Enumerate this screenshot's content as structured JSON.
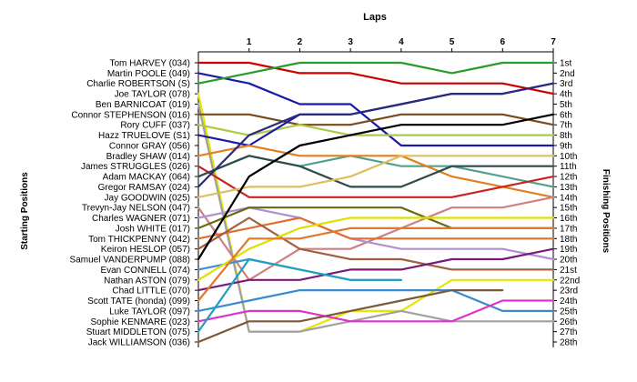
{
  "chart_data": {
    "type": "line",
    "title": "Laps",
    "y_left_label": "Starting Positions",
    "y_right_label": "Finishing Positions",
    "x": [
      0,
      1,
      2,
      3,
      4,
      5,
      6,
      7
    ],
    "x_tick_labels": [
      "1",
      "2",
      "3",
      "4",
      "5",
      "6",
      "7"
    ],
    "rows": 28,
    "starting_positions": [
      "Tom HARVEY (034)",
      "Martin POOLE (049)",
      "Charlie ROBERTSON (S)",
      "Joe TAYLOR (078)",
      "Ben BARNICOAT (019)",
      "Connor STEPHENSON (016)",
      "Rory CUFF (037)",
      "Hazz TRUELOVE (S1)",
      "Connor GRAY (056)",
      "Bradley SHAW (014)",
      "James STRUGGLES (026)",
      "Adam MACKAY (064)",
      "Gregor RAMSAY (024)",
      "Jay GOODWIN (025)",
      "Trevyn-Jay NELSON (047)",
      "Charles WAGNER (071)",
      "Josh WHITE (017)",
      "Tom THICKPENNY (042)",
      "Keiron HESLOP (057)",
      "Samuel VANDERPUMP (088)",
      "Evan CONNELL (074)",
      "Nathan ASTON (079)",
      "Chad LITTLE (070)",
      "Scott TATE (honda) (099)",
      "Luke TAYLOR (097)",
      "Sophie KENMARE (023)",
      "Stuart MIDDLETON (075)",
      "Jack WILLIAMSON (036)"
    ],
    "finishing_positions": [
      "1st",
      "2nd",
      "3rd",
      "4th",
      "5th",
      "6th",
      "7th",
      "8th",
      "9th",
      "10th",
      "11th",
      "12th",
      "13th",
      "14th",
      "15th",
      "16th",
      "17th",
      "18th",
      "19th",
      "20th",
      "21st",
      "22nd",
      "23rd",
      "24th",
      "25th",
      "26th",
      "27th",
      "28th"
    ],
    "series": [
      {
        "color": "#cc0000",
        "positions": [
          1,
          1,
          2,
          2,
          3,
          3,
          3,
          4
        ]
      },
      {
        "color": "#1a1aaa",
        "positions": [
          2,
          3,
          5,
          5,
          9,
          9,
          9,
          9
        ]
      },
      {
        "color": "#2a9a2a",
        "positions": [
          3,
          2,
          1,
          1,
          1,
          2,
          1,
          1
        ]
      },
      {
        "color": "#e6e600",
        "positions": [
          4,
          27,
          27,
          25,
          25,
          22,
          22,
          22
        ]
      },
      {
        "color": "#a0a0a0",
        "positions": [
          5,
          27,
          27,
          26,
          25,
          26,
          26,
          26
        ]
      },
      {
        "color": "#7a4a1a",
        "positions": [
          6,
          6,
          7,
          7,
          6,
          6,
          6,
          7
        ]
      },
      {
        "color": "#aacc44",
        "positions": [
          7,
          8,
          7,
          8,
          8,
          8,
          8,
          8
        ]
      },
      {
        "color": "#50a090",
        "positions": [
          12,
          10,
          11,
          10,
          11,
          11,
          12,
          13
        ]
      },
      {
        "color": "#1a1aaa",
        "positions": [
          8,
          9,
          6,
          6,
          5,
          4,
          4,
          3
        ]
      },
      {
        "color": "#e08020",
        "positions": [
          10,
          9,
          10,
          10,
          10,
          12,
          13,
          14
        ]
      },
      {
        "color": "#cc2222",
        "positions": [
          11,
          14,
          14,
          14,
          14,
          14,
          13,
          12
        ]
      },
      {
        "color": "#2e4a4a",
        "positions": [
          12,
          10,
          11,
          13,
          13,
          11,
          11,
          11
        ]
      },
      {
        "color": "#2a2a7a",
        "positions": [
          13,
          8,
          6,
          6,
          5,
          4,
          4,
          3
        ]
      },
      {
        "color": "#d9c060",
        "positions": [
          14,
          13,
          13,
          12,
          10,
          10,
          10,
          10
        ]
      },
      {
        "color": "#d08080",
        "positions": [
          15,
          22,
          19,
          19,
          17,
          15,
          15,
          14
        ]
      },
      {
        "color": "#b090d0",
        "positions": [
          16,
          15,
          16,
          18,
          19,
          19,
          19,
          20
        ]
      },
      {
        "color": "#6a6a10",
        "positions": [
          17,
          15,
          15,
          15,
          15,
          17,
          17,
          17
        ]
      },
      {
        "color": "#e07030",
        "positions": [
          18,
          17,
          16,
          18,
          18,
          18,
          18,
          18
        ]
      },
      {
        "color": "#a06040",
        "positions": [
          19,
          16,
          19,
          20,
          20,
          21,
          21,
          21
        ]
      },
      {
        "color": "#000000",
        "positions": [
          20,
          12,
          9,
          8,
          7,
          7,
          7,
          6
        ]
      },
      {
        "color": "#4090d0",
        "positions": [
          21,
          20,
          21,
          22,
          22,
          null,
          null,
          null
        ]
      },
      {
        "color": "#e0e000",
        "positions": [
          22,
          19,
          17,
          16,
          16,
          16,
          16,
          16
        ]
      },
      {
        "color": "#7a1a7a",
        "positions": [
          23,
          22,
          22,
          21,
          21,
          20,
          20,
          19
        ]
      },
      {
        "color": "#e07a2a",
        "positions": [
          24,
          18,
          18,
          17,
          17,
          17,
          17,
          17
        ]
      },
      {
        "color": "#3a8ad0",
        "positions": [
          25,
          24,
          23,
          23,
          23,
          23,
          25,
          25
        ]
      },
      {
        "color": "#dd33cc",
        "positions": [
          26,
          25,
          25,
          26,
          26,
          26,
          24,
          24
        ]
      },
      {
        "color": "#20a0c0",
        "positions": [
          27,
          20,
          21,
          22,
          22,
          null,
          null,
          null
        ]
      },
      {
        "color": "#7a5a3a",
        "positions": [
          28,
          26,
          26,
          25,
          24,
          23,
          23,
          null
        ]
      }
    ]
  }
}
